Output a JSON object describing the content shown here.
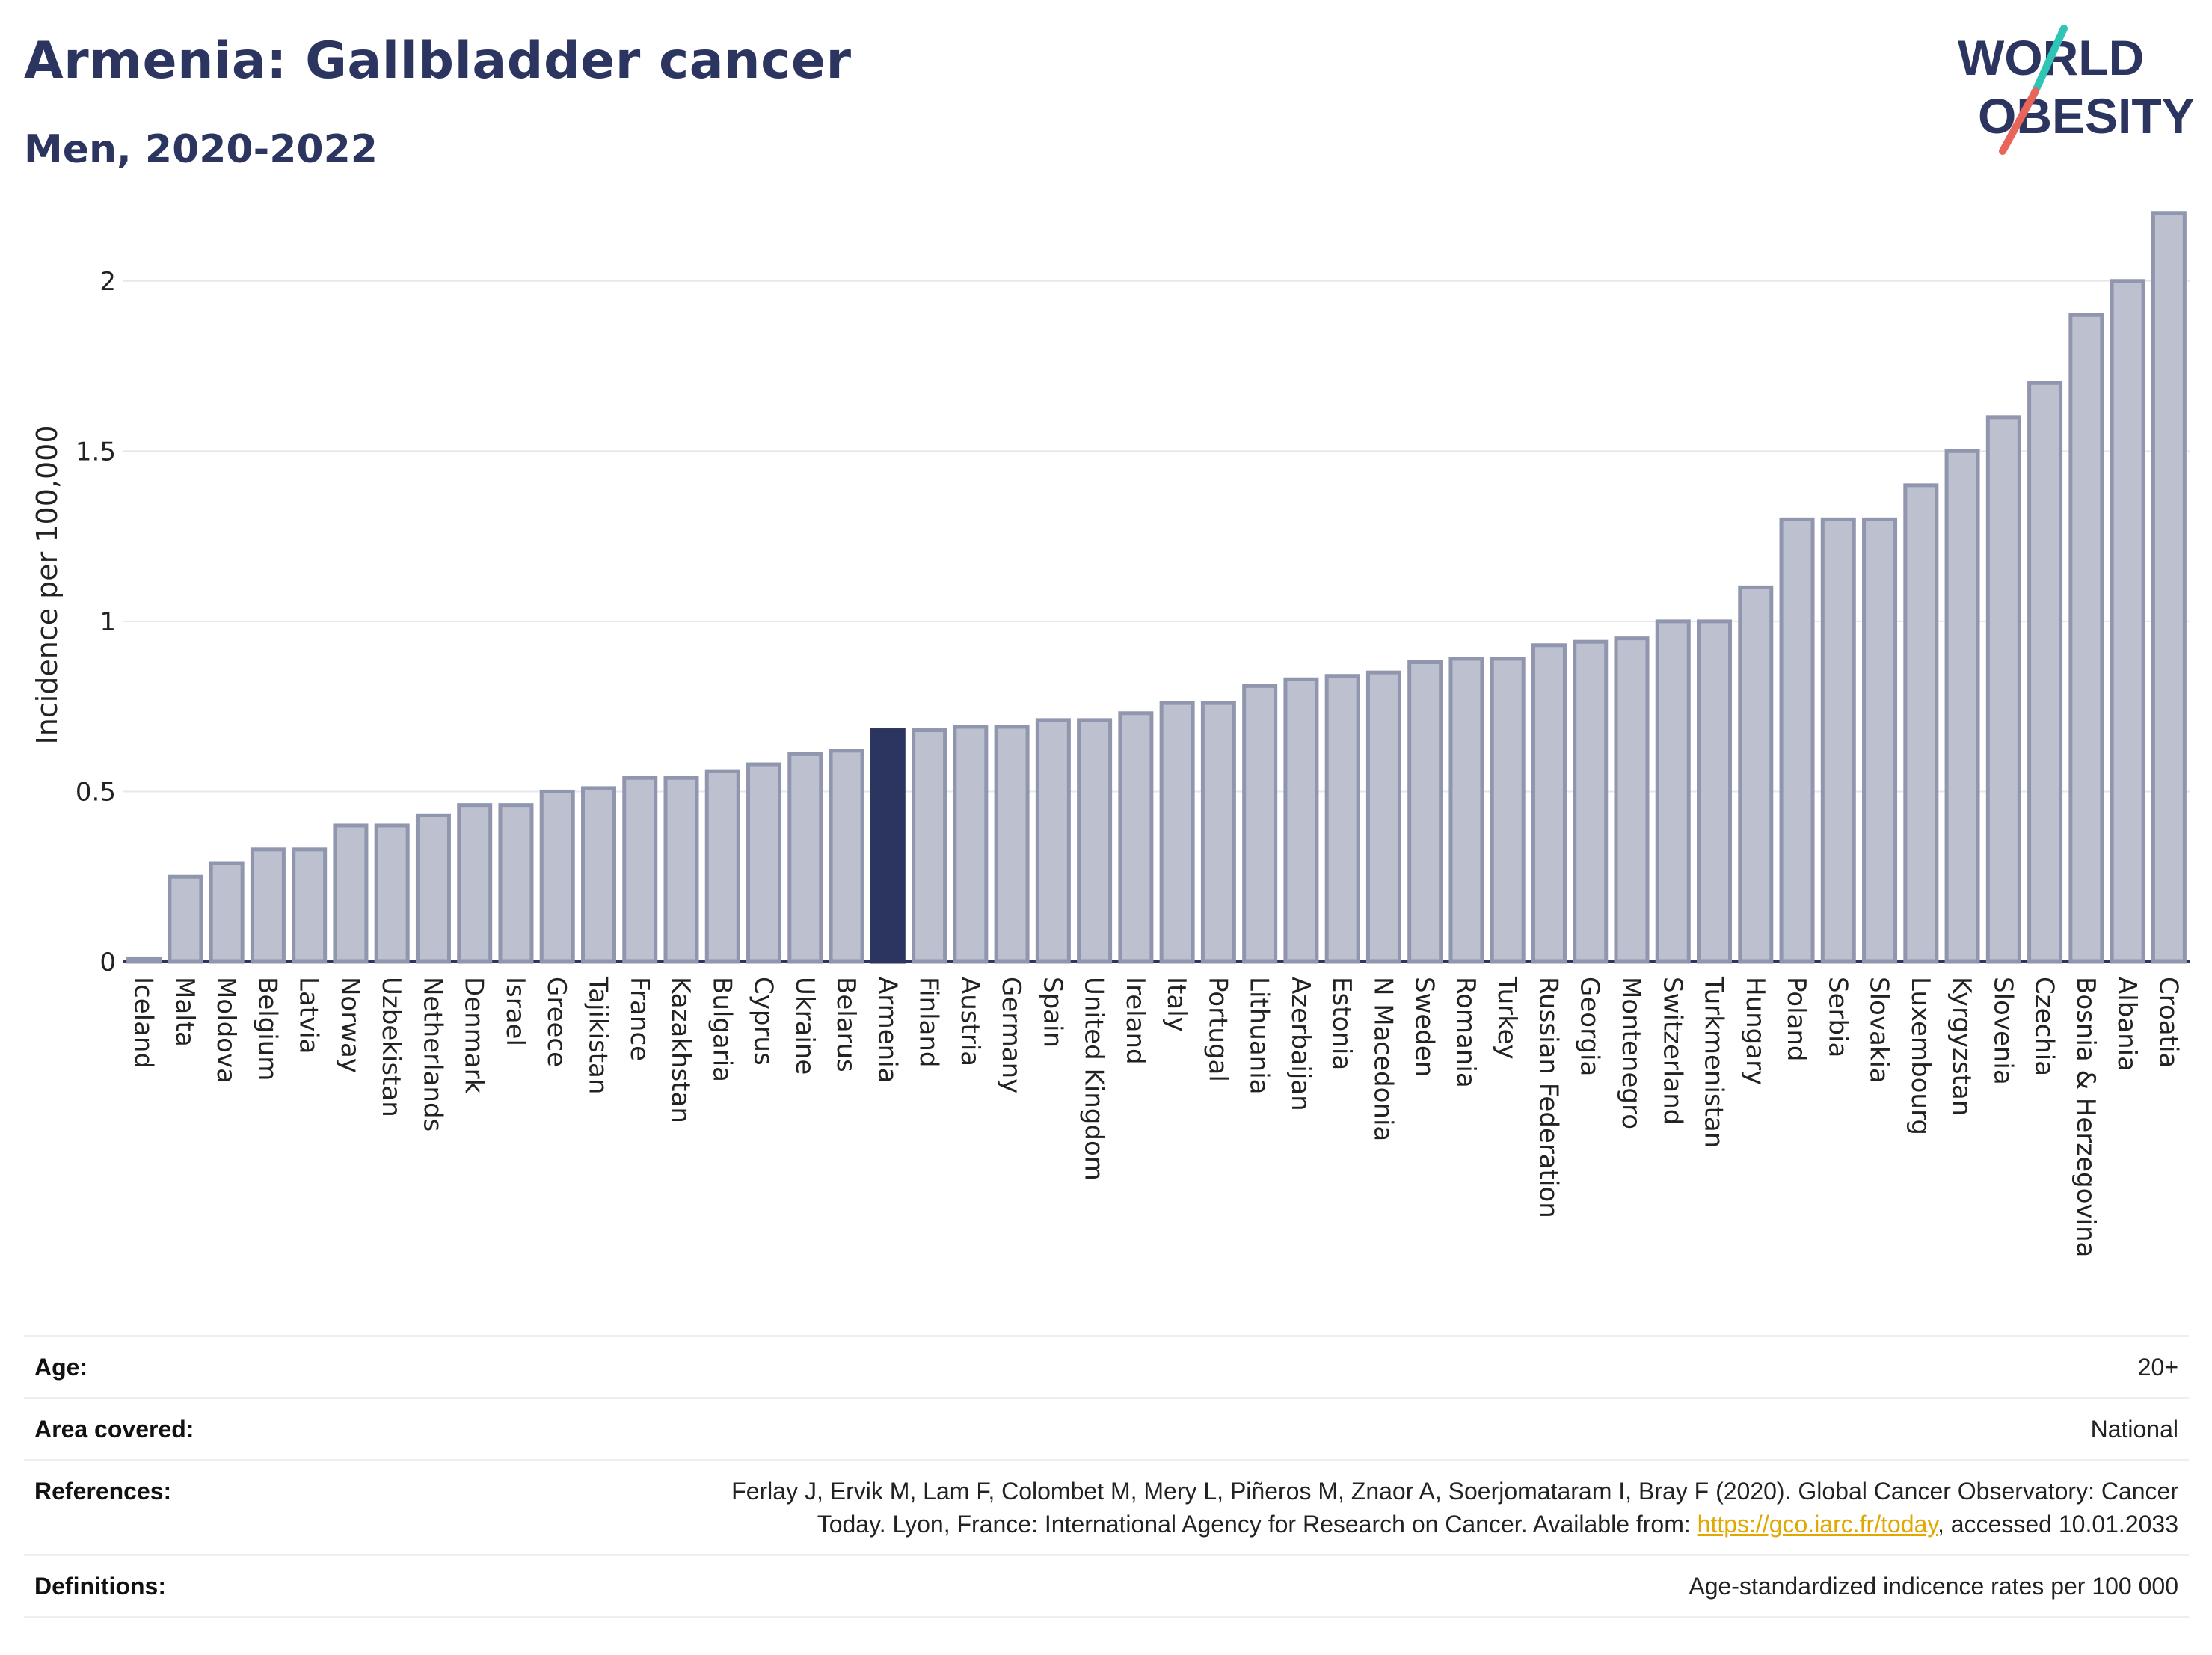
{
  "header": {
    "title": "Armenia: Gallbladder cancer",
    "subtitle": "Men, 2020-2022"
  },
  "logo": {
    "line1": "WORLD",
    "line2": "OBESITY",
    "accent_teal": "#2ec4b6",
    "accent_red": "#e8655a"
  },
  "chart_data": {
    "type": "bar",
    "ylabel": "Incidence per 100,000",
    "ylim": [
      0,
      2.25
    ],
    "yticks": [
      0,
      0.5,
      1,
      1.5,
      2
    ],
    "ytick_labels": [
      "0",
      "0.5",
      "1",
      "1.5",
      "2"
    ],
    "grid": true,
    "highlight": "Armenia",
    "highlight_color": "#2b3560",
    "bar_color": "#bcc0cf",
    "bar_border_color": "#9096ad",
    "categories": [
      "Iceland",
      "Malta",
      "Moldova",
      "Belgium",
      "Latvia",
      "Norway",
      "Uzbekistan",
      "Netherlands",
      "Denmark",
      "Israel",
      "Greece",
      "Tajikistan",
      "France",
      "Kazakhstan",
      "Bulgaria",
      "Cyprus",
      "Ukraine",
      "Belarus",
      "Armenia",
      "Finland",
      "Austria",
      "Germany",
      "Spain",
      "United Kingdom",
      "Ireland",
      "Italy",
      "Portugal",
      "Lithuania",
      "Azerbaijan",
      "Estonia",
      "N Macedonia",
      "Sweden",
      "Romania",
      "Turkey",
      "Russian Federation",
      "Georgia",
      "Montenegro",
      "Switzerland",
      "Turkmenistan",
      "Hungary",
      "Poland",
      "Serbia",
      "Slovakia",
      "Luxembourg",
      "Kyrgyzstan",
      "Slovenia",
      "Czechia",
      "Bosnia & Herzegovina",
      "Albania",
      "Croatia"
    ],
    "values": [
      0.01,
      0.25,
      0.29,
      0.33,
      0.33,
      0.4,
      0.4,
      0.43,
      0.46,
      0.46,
      0.5,
      0.51,
      0.54,
      0.54,
      0.56,
      0.58,
      0.61,
      0.62,
      0.68,
      0.68,
      0.69,
      0.69,
      0.71,
      0.71,
      0.73,
      0.76,
      0.76,
      0.81,
      0.83,
      0.84,
      0.85,
      0.88,
      0.89,
      0.89,
      0.93,
      0.94,
      0.95,
      1.0,
      1.0,
      1.1,
      1.3,
      1.3,
      1.3,
      1.4,
      1.5,
      1.6,
      1.7,
      1.9,
      2.0,
      2.2
    ]
  },
  "info": {
    "age_label": "Age:",
    "age_value": "20+",
    "area_label": "Area covered:",
    "area_value": "National",
    "references_label": "References:",
    "references_line1": "Ferlay J, Ervik M, Lam F, Colombet M, Mery L, Piñeros M, Znaor A, Soerjomataram I, Bray F (2020). Global Cancer Observatory: Cancer",
    "references_line2_pre": "Today. Lyon, France: International Agency for Research on Cancer. Available from: ",
    "references_link": "https://gco.iarc.fr/today",
    "references_line2_post": ", accessed 10.01.2033",
    "definitions_label": "Definitions:",
    "definitions_value": "Age-standardized indicence rates per 100 000"
  }
}
